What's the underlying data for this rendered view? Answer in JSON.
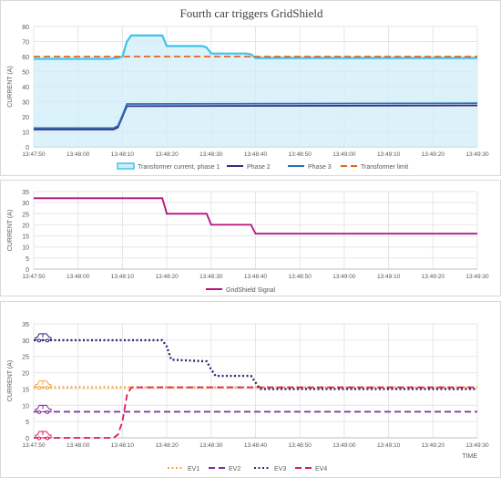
{
  "charts": {
    "panels": [
      {
        "title": "Fourth car triggers GridShield",
        "type": "line",
        "ylabel": "CURRENT (A)",
        "xlabel": "",
        "ylim": [
          0,
          80
        ],
        "yticks": [
          0,
          10,
          20,
          30,
          40,
          50,
          60,
          70,
          80
        ],
        "x_ticks": [
          "13:47:50",
          "13:48:00",
          "13:48:10",
          "13:48:20",
          "13:48:30",
          "13:48:40",
          "13:48:50",
          "13:49:00",
          "13:49:10",
          "13:49:20",
          "13:49:30"
        ],
        "series": [
          {
            "name": "Transformer current, phase 1",
            "color": "#3ec3ec",
            "style": "area",
            "x": [
              "13:47:50",
              "13:48:07",
              "13:48:09",
              "13:48:10",
              "13:48:11",
              "13:48:12",
              "13:48:13",
              "13:48:19",
              "13:48:20",
              "13:48:28",
              "13:48:29",
              "13:48:30",
              "13:48:38",
              "13:48:39",
              "13:48:40",
              "13:49:30"
            ],
            "y": [
              58.5,
              58.5,
              59,
              60,
              70,
              74,
              74,
              74,
              67,
              67,
              66,
              62,
              62,
              61.5,
              59,
              59
            ]
          },
          {
            "name": "Phase 2",
            "color": "#3c2a7a",
            "style": "solid",
            "x": [
              "13:47:50",
              "13:48:08",
              "13:48:09",
              "13:48:10",
              "13:48:11",
              "13:49:30"
            ],
            "y": [
              11.5,
              11.5,
              13,
              20,
              27,
              27.5
            ]
          },
          {
            "name": "Phase 3",
            "color": "#2a6fb5",
            "style": "solid",
            "x": [
              "13:47:50",
              "13:48:08",
              "13:48:09",
              "13:48:10",
              "13:48:11",
              "13:49:30"
            ],
            "y": [
              12.5,
              12.5,
              14,
              21,
              28.5,
              29
            ]
          },
          {
            "name": "Transformer limit",
            "color": "#e2661f",
            "style": "dashed",
            "x": [
              "13:47:50",
              "13:49:30"
            ],
            "y": [
              60,
              60
            ]
          }
        ]
      },
      {
        "title": "",
        "type": "line",
        "ylabel": "CURRENT (A)",
        "xlabel": "",
        "ylim": [
          0,
          35
        ],
        "yticks": [
          0,
          5,
          10,
          15,
          20,
          25,
          30,
          35
        ],
        "x_ticks": [
          "13:47:50",
          "13:48:00",
          "13:48:10",
          "13:48:20",
          "13:48:30",
          "13:48:40",
          "13:48:50",
          "13:49:00",
          "13:49:10",
          "13:49:20",
          "13:49:30"
        ],
        "series": [
          {
            "name": "GridShield Signal",
            "color": "#b5127a",
            "style": "solid",
            "x": [
              "13:47:50",
              "13:48:19",
              "13:48:20",
              "13:48:29",
              "13:48:30",
              "13:48:39",
              "13:48:40",
              "13:49:30"
            ],
            "y": [
              32,
              32,
              25,
              25,
              20,
              20,
              16,
              16
            ]
          }
        ]
      },
      {
        "title": "",
        "type": "line",
        "ylabel": "CURRENT (A)",
        "xlabel": "TIME",
        "ylim": [
          0,
          35
        ],
        "yticks": [
          0,
          5,
          10,
          15,
          20,
          25,
          30,
          35
        ],
        "x_ticks": [
          "13:47:50",
          "13:48:00",
          "13:48:10",
          "13:48:20",
          "13:48:30",
          "13:48:40",
          "13:48:50",
          "13:49:00",
          "13:49:10",
          "13:49:20",
          "13:49:30"
        ],
        "series": [
          {
            "name": "EV1",
            "color": "#f2a93b",
            "style": "dotted",
            "x": [
              "13:47:50",
              "13:49:30"
            ],
            "y": [
              15.5,
              15.5
            ]
          },
          {
            "name": "EV2",
            "color": "#7b2fa0",
            "style": "dashed",
            "x": [
              "13:47:50",
              "13:49:30"
            ],
            "y": [
              8,
              8
            ]
          },
          {
            "name": "EV3",
            "color": "#2b2a7a",
            "style": "dotted",
            "x": [
              "13:47:50",
              "13:48:19",
              "13:48:20",
              "13:48:21",
              "13:48:29",
              "13:48:30",
              "13:48:31",
              "13:48:39",
              "13:48:40",
              "13:48:41",
              "13:49:30"
            ],
            "y": [
              30,
              30,
              28,
              24,
              23.5,
              21,
              19,
              19,
              17,
              15,
              15
            ]
          },
          {
            "name": "EV4",
            "color": "#e0195a",
            "style": "dashed",
            "x": [
              "13:47:50",
              "13:48:08",
              "13:48:09",
              "13:48:10",
              "13:48:11",
              "13:48:12",
              "13:49:30"
            ],
            "y": [
              0,
              0,
              1,
              5,
              13,
              15.5,
              15.5
            ]
          }
        ],
        "icons": [
          "car-icon",
          "car-icon",
          "car-icon",
          "car-icon"
        ]
      }
    ]
  }
}
